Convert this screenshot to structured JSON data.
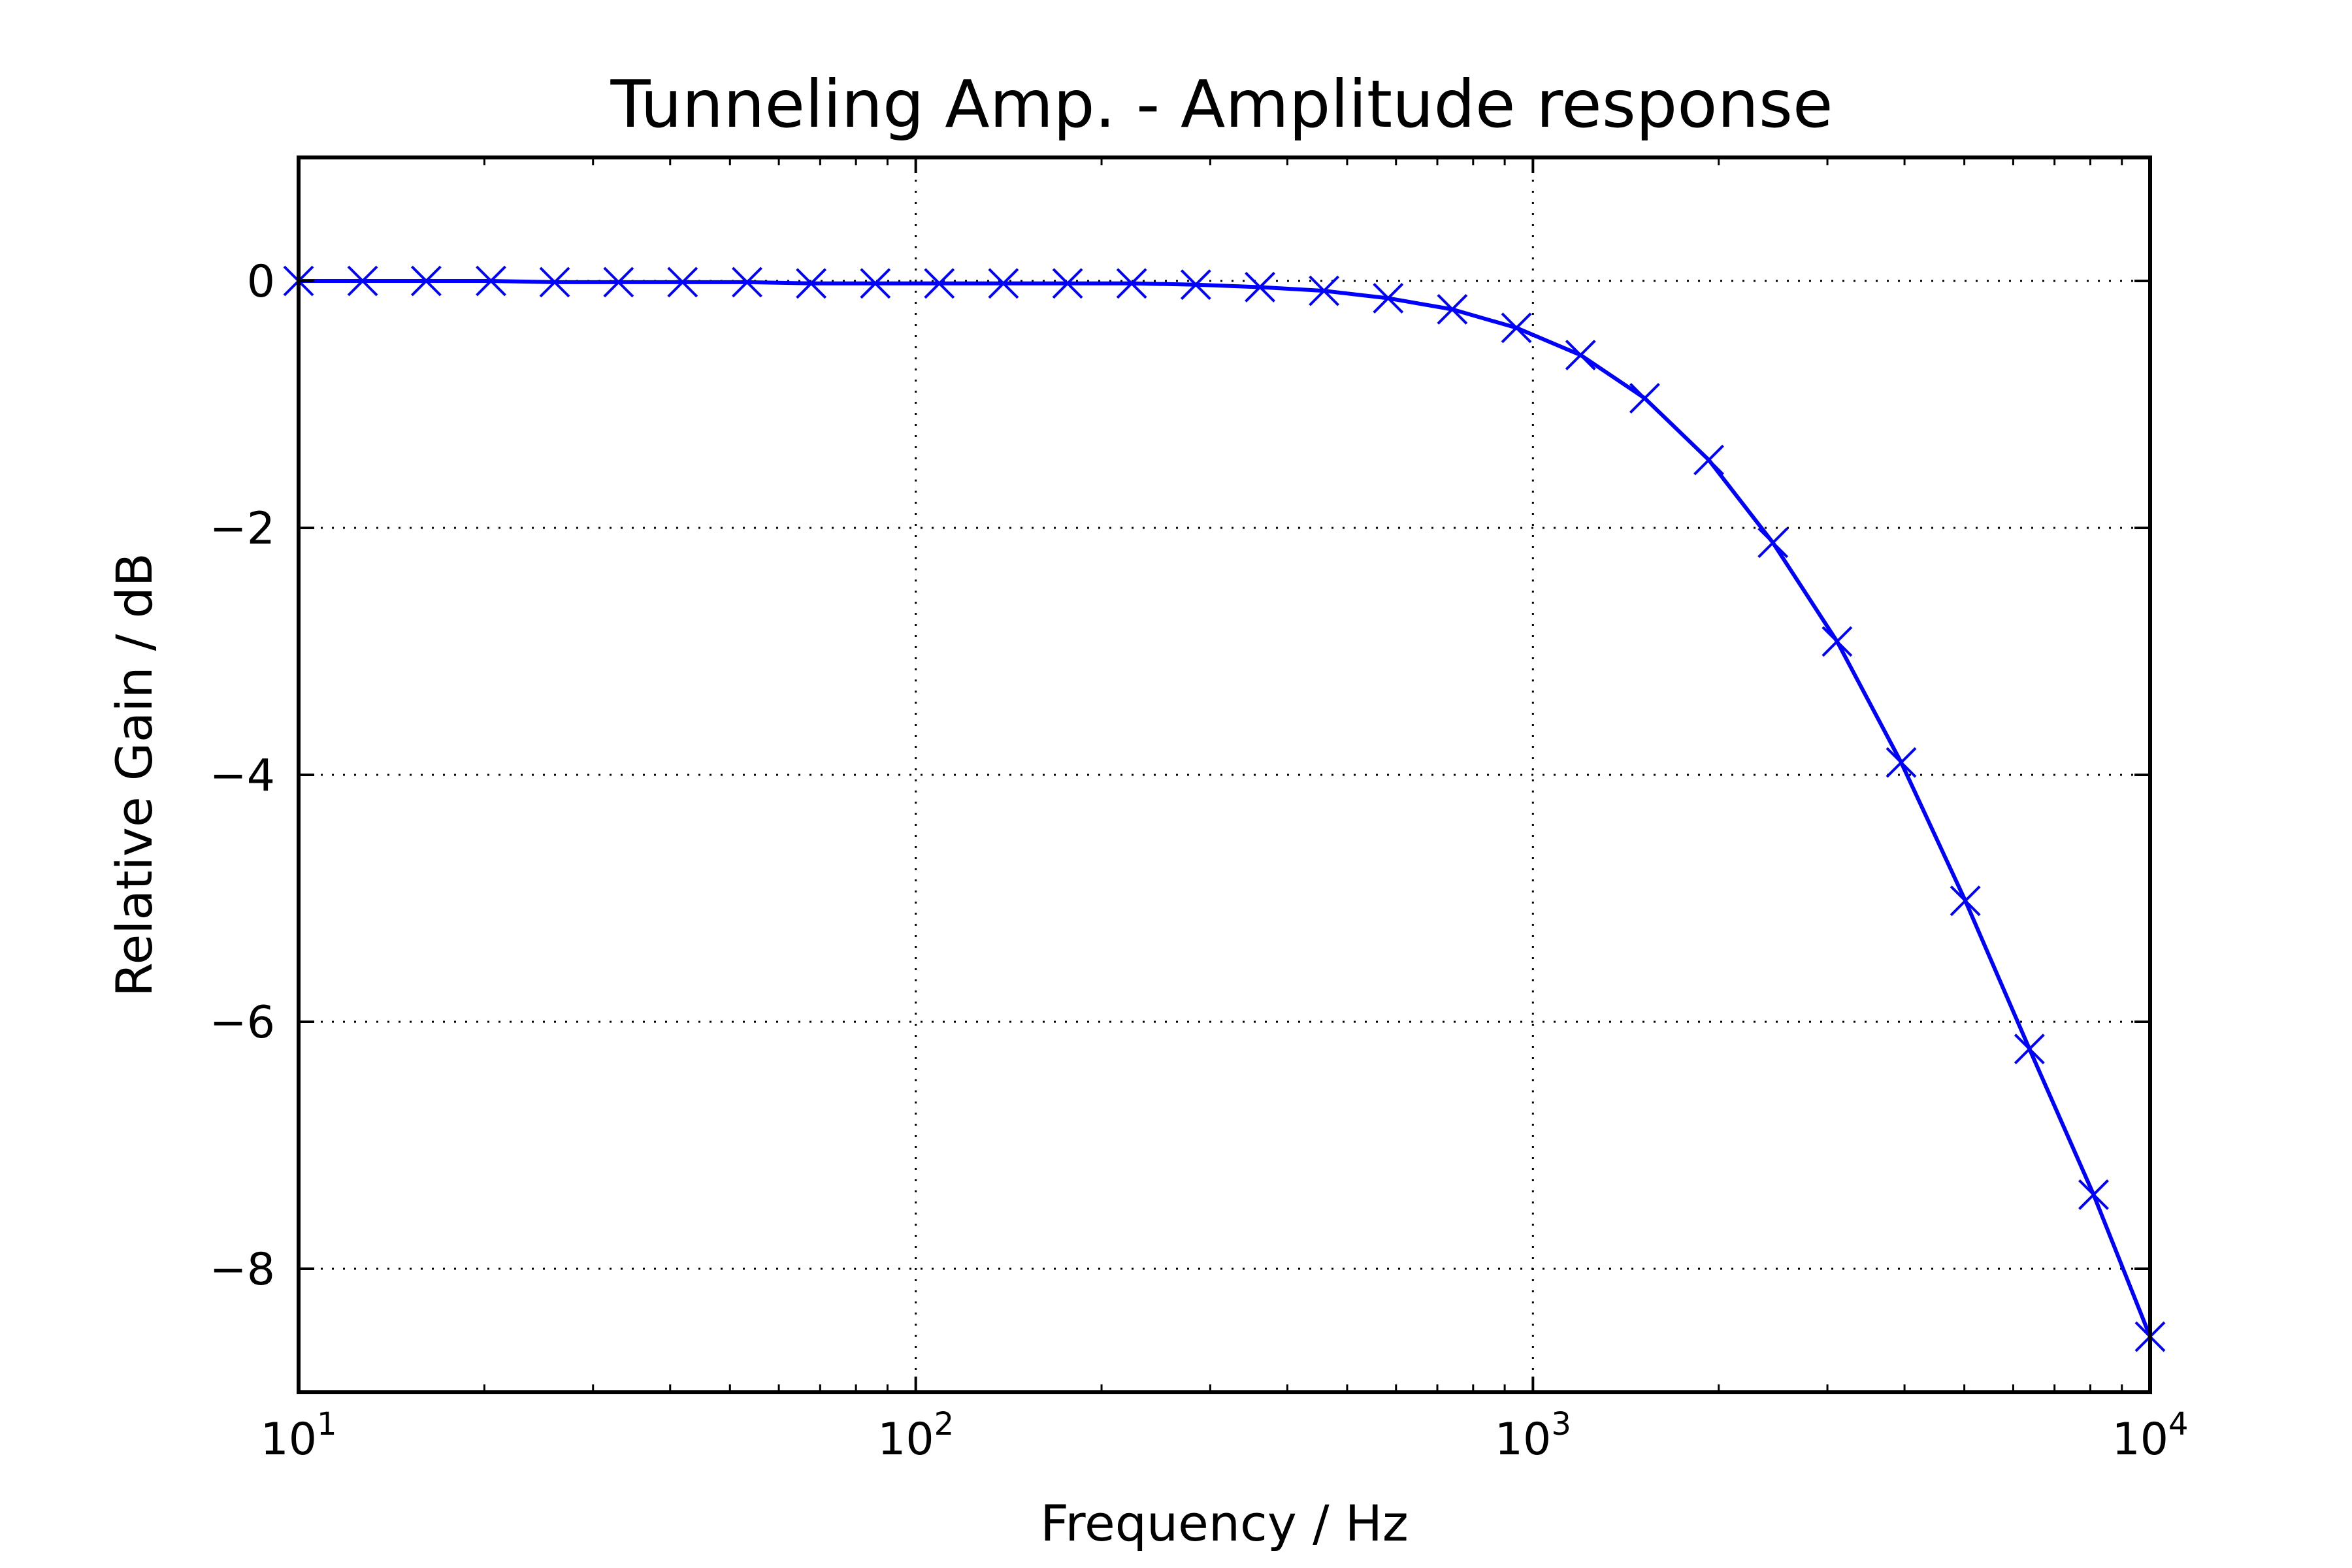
{
  "chart_data": {
    "type": "line",
    "title": "Tunneling Amp. - Amplitude response",
    "xlabel": "Frequency / Hz",
    "ylabel": "Relative Gain / dB",
    "xscale": "log",
    "xlim": [
      10,
      10000
    ],
    "ylim": [
      -9,
      1
    ],
    "grid": true,
    "grid_style": "dotted",
    "xticks": [
      {
        "value": 10,
        "base": "10",
        "exp": "1"
      },
      {
        "value": 100,
        "base": "10",
        "exp": "2"
      },
      {
        "value": 1000,
        "base": "10",
        "exp": "3"
      },
      {
        "value": 10000,
        "base": "10",
        "exp": "4"
      }
    ],
    "yticks": [
      {
        "value": 0,
        "label": "0"
      },
      {
        "value": -2,
        "label": "−2"
      },
      {
        "value": -4,
        "label": "−4"
      },
      {
        "value": -6,
        "label": "−6"
      },
      {
        "value": -8,
        "label": "−8"
      }
    ],
    "series": [
      {
        "color": "#0000ff",
        "line": "solid",
        "marker": "x",
        "x": [
          10,
          12.7,
          16.1,
          20.5,
          26.0,
          33.0,
          41.9,
          53.3,
          67.7,
          86.0,
          109.2,
          138.7,
          176.2,
          223.8,
          284.3,
          361.2,
          458.7,
          582.7,
          740.2,
          940.3,
          1194.5,
          1517.3,
          1927.4,
          2448.4,
          3110.3,
          3951.0,
          5018.9,
          6375.5,
          8098.9,
          10000
        ],
        "y": [
          0.0,
          0.0,
          0.0,
          0.0,
          -0.01,
          -0.01,
          -0.01,
          -0.01,
          -0.02,
          -0.02,
          -0.02,
          -0.02,
          -0.02,
          -0.02,
          -0.03,
          -0.05,
          -0.08,
          -0.14,
          -0.23,
          -0.38,
          -0.6,
          -0.95,
          -1.45,
          -2.12,
          -2.92,
          -3.9,
          -5.02,
          -6.22,
          -7.4,
          -8.55
        ]
      }
    ]
  }
}
